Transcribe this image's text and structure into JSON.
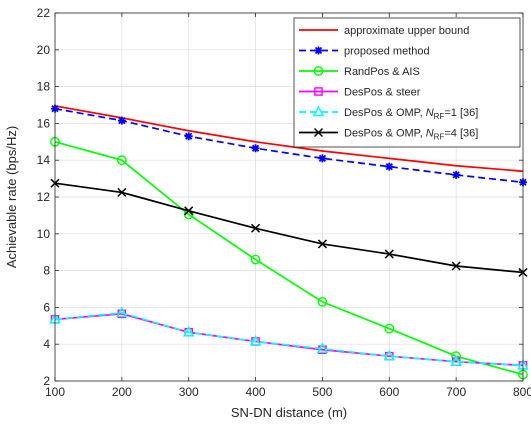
{
  "chart_data": {
    "type": "line",
    "title": "",
    "xlabel": "SN-DN distance (m)",
    "ylabel": "Achievable rate (bps/Hz)",
    "xlim": [
      100,
      800
    ],
    "ylim": [
      2,
      22
    ],
    "xticks": [
      100,
      200,
      300,
      400,
      500,
      600,
      700,
      800
    ],
    "yticks": [
      2,
      4,
      6,
      8,
      10,
      12,
      14,
      16,
      18,
      20,
      22
    ],
    "grid": true,
    "legend_position": "top-right",
    "x": [
      100,
      200,
      300,
      400,
      500,
      600,
      700,
      800
    ],
    "series": [
      {
        "name": "approximate upper bound",
        "color": "#ff0000",
        "dash": "solid",
        "marker": "none",
        "values": [
          16.95,
          16.3,
          15.6,
          15.0,
          14.5,
          14.1,
          13.7,
          13.4
        ]
      },
      {
        "name": "proposed method",
        "color": "#0000ff",
        "dash": "dashed",
        "marker": "star",
        "values": [
          16.8,
          16.15,
          15.3,
          14.65,
          14.1,
          13.65,
          13.2,
          12.8
        ]
      },
      {
        "name": "RandPos & AIS",
        "color": "#00ff00",
        "dash": "solid",
        "marker": "circle",
        "values": [
          15.0,
          14.0,
          11.05,
          8.6,
          6.3,
          4.85,
          3.35,
          2.35
        ]
      },
      {
        "name": "DesPos & steer",
        "color": "#ff00ff",
        "dash": "solid",
        "marker": "square",
        "values": [
          5.35,
          5.65,
          4.65,
          4.15,
          3.7,
          3.35,
          3.05,
          2.85
        ]
      },
      {
        "name_prefix": "DesPos & OMP, ",
        "name_var": "N",
        "name_sub": "RF",
        "name_suffix": "=1 [36]",
        "color": "#00ffff",
        "dash": "dashed",
        "marker": "triangle",
        "values": [
          5.35,
          5.7,
          4.65,
          4.15,
          3.75,
          3.35,
          3.05,
          2.85
        ]
      },
      {
        "name_prefix": "DesPos & OMP, ",
        "name_var": "N",
        "name_sub": "RF",
        "name_suffix": "=4 [36]",
        "color": "#000000",
        "dash": "solid",
        "marker": "x",
        "values": [
          12.75,
          12.25,
          11.25,
          10.3,
          9.45,
          8.9,
          8.25,
          7.9
        ]
      }
    ]
  }
}
